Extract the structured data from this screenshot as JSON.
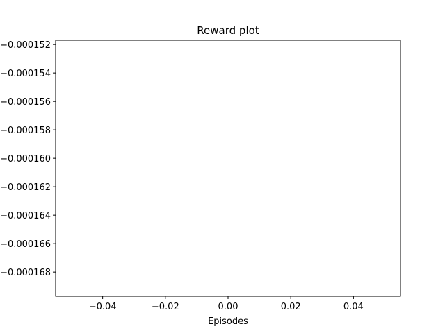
{
  "chart_data": {
    "type": "line",
    "title": "Reward plot",
    "xlabel": "Episodes",
    "ylabel": "",
    "xlim": [
      -0.055,
      0.055
    ],
    "ylim": [
      -0.0001697,
      -0.0001517
    ],
    "x_ticks": [
      -0.04,
      -0.02,
      0.0,
      0.02,
      0.04
    ],
    "x_tick_labels": [
      "−0.04",
      "−0.02",
      "0.00",
      "0.02",
      "0.04"
    ],
    "y_ticks": [
      -0.000152,
      -0.000154,
      -0.000156,
      -0.000158,
      -0.00016,
      -0.000162,
      -0.000164,
      -0.000166,
      -0.000168
    ],
    "y_tick_labels": [
      "−0.000152",
      "−0.000154",
      "−0.000156",
      "−0.000158",
      "−0.000160",
      "−0.000162",
      "−0.000164",
      "−0.000166",
      "−0.000168"
    ],
    "grid": false,
    "series": [
      {
        "x": [],
        "y": []
      }
    ]
  }
}
